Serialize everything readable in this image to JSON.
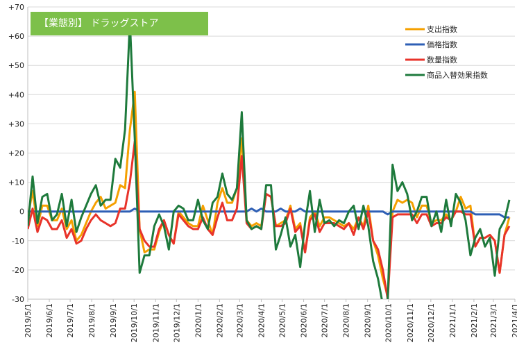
{
  "chart_data": {
    "type": "line",
    "badge_label": "【業態別】 ドラッグストア",
    "badge_color": "#7dc04a",
    "ylim": [
      -30,
      70
    ],
    "y_ticks": [
      {
        "value": 70,
        "label": "+70"
      },
      {
        "value": 60,
        "label": "+60"
      },
      {
        "value": 50,
        "label": "+50"
      },
      {
        "value": 40,
        "label": "+40"
      },
      {
        "value": 30,
        "label": "+30"
      },
      {
        "value": 20,
        "label": "+20"
      },
      {
        "value": 10,
        "label": "+10"
      },
      {
        "value": 0,
        "label": "0"
      },
      {
        "value": -10,
        "label": "-10"
      },
      {
        "value": -20,
        "label": "-20"
      },
      {
        "value": -30,
        "label": "-30"
      }
    ],
    "x_ticks": [
      "2019/5/1",
      "2019/6/1",
      "2019/7/1",
      "2019/8/1",
      "2019/9/1",
      "2019/10/1",
      "2019/11/1",
      "2019/12/1",
      "2020/1/1",
      "2020/2/1",
      "2020/3/1",
      "2020/4/1",
      "2020/5/1",
      "2020/6/1",
      "2020/7/1",
      "2020/8/1",
      "2020/9/1",
      "2020/10/1",
      "2020/11/1",
      "2020/12/1",
      "2021/1/1",
      "2021/2/1",
      "2021/3/1",
      "2021/4/1"
    ],
    "x": [
      "2019/5/1",
      "2019/5/8",
      "2019/5/15",
      "2019/5/22",
      "2019/5/29",
      "2019/6/5",
      "2019/6/12",
      "2019/6/19",
      "2019/6/26",
      "2019/7/3",
      "2019/7/10",
      "2019/7/17",
      "2019/7/24",
      "2019/7/31",
      "2019/8/7",
      "2019/8/14",
      "2019/8/21",
      "2019/8/28",
      "2019/9/4",
      "2019/9/11",
      "2019/9/18",
      "2019/9/25",
      "2019/10/2",
      "2019/10/9",
      "2019/10/16",
      "2019/10/23",
      "2019/10/30",
      "2019/11/6",
      "2019/11/13",
      "2019/11/20",
      "2019/11/27",
      "2019/12/4",
      "2019/12/11",
      "2019/12/18",
      "2019/12/25",
      "2020/1/1",
      "2020/1/8",
      "2020/1/15",
      "2020/1/22",
      "2020/1/29",
      "2020/2/5",
      "2020/2/12",
      "2020/2/19",
      "2020/2/26",
      "2020/3/4",
      "2020/3/11",
      "2020/3/18",
      "2020/3/25",
      "2020/4/1",
      "2020/4/8",
      "2020/4/15",
      "2020/4/22",
      "2020/4/29",
      "2020/5/6",
      "2020/5/13",
      "2020/5/20",
      "2020/5/27",
      "2020/6/3",
      "2020/6/10",
      "2020/6/17",
      "2020/6/24",
      "2020/7/1",
      "2020/7/8",
      "2020/7/15",
      "2020/7/22",
      "2020/7/29",
      "2020/8/5",
      "2020/8/12",
      "2020/8/19",
      "2020/8/26",
      "2020/9/2",
      "2020/9/9",
      "2020/9/16",
      "2020/9/23",
      "2020/9/30",
      "2020/10/7",
      "2020/10/14",
      "2020/10/21",
      "2020/10/28",
      "2020/11/4",
      "2020/11/11",
      "2020/11/18",
      "2020/11/25",
      "2020/12/2",
      "2020/12/9",
      "2020/12/16",
      "2020/12/23",
      "2020/12/30",
      "2021/1/6",
      "2021/1/13",
      "2021/1/20",
      "2021/1/27",
      "2021/2/3",
      "2021/2/10",
      "2021/2/17",
      "2021/2/24",
      "2021/3/3",
      "2021/3/10",
      "2021/3/17",
      "2021/3/24"
    ],
    "series": [
      {
        "name": "支出指数",
        "color": "#f5a000",
        "values": [
          -2,
          7,
          -5,
          2,
          2,
          -3,
          -3,
          1,
          -6,
          -3,
          -10,
          -8,
          -4,
          0,
          3,
          5,
          1,
          2,
          3,
          9,
          8,
          28,
          41,
          -6,
          -14,
          -13,
          -13,
          -7,
          -3,
          -8,
          -11,
          0,
          -2,
          -4,
          -5,
          -5,
          2,
          -3,
          -8,
          3,
          8,
          3,
          3,
          8,
          25,
          -3,
          -5,
          -4,
          -5,
          6,
          5,
          -5,
          -4,
          -3,
          2,
          -6,
          -4,
          -14,
          -2,
          0,
          -5,
          -2,
          -2,
          -3,
          -4,
          -5,
          -4,
          -6,
          -2,
          -5,
          2,
          -10,
          -15,
          -23,
          -29,
          0,
          4,
          3,
          4,
          3,
          -2,
          2,
          2,
          -4,
          -3,
          -3,
          -1,
          -3,
          0,
          5,
          1,
          2,
          -12,
          -9,
          -9,
          -8,
          -10,
          -21,
          -8,
          -2
        ]
      },
      {
        "name": "価格指数",
        "color": "#2e5fb5",
        "values": [
          0,
          0,
          0,
          0,
          0,
          0,
          0,
          0,
          0,
          0,
          0,
          0,
          0,
          0,
          0,
          0,
          0,
          0,
          0,
          0,
          0,
          0,
          1,
          0,
          0,
          0,
          0,
          0,
          0,
          0,
          0,
          0,
          0,
          0,
          0,
          0,
          0,
          0,
          0,
          0,
          0,
          0,
          0,
          0,
          0,
          0,
          1,
          0,
          1,
          0,
          0,
          0,
          1,
          0,
          0,
          0,
          1,
          0,
          0,
          0,
          0,
          0,
          0,
          0,
          0,
          0,
          0,
          0,
          0,
          0,
          0,
          0,
          0,
          0,
          -1,
          0,
          0,
          0,
          0,
          0,
          0,
          0,
          0,
          0,
          0,
          0,
          0,
          0,
          0,
          0,
          0,
          0,
          -1,
          -1,
          -1,
          -1,
          -1,
          -1,
          -2,
          -2
        ]
      },
      {
        "name": "数量指数",
        "color": "#e8332a",
        "values": [
          -6,
          1,
          -7,
          -2,
          -3,
          -6,
          -6,
          -3,
          -9,
          -6,
          -11,
          -10,
          -6,
          -3,
          -1,
          -3,
          -4,
          -5,
          -4,
          1,
          1,
          10,
          24,
          -6,
          -10,
          -12,
          -12,
          -6,
          -3,
          -8,
          -11,
          -1,
          -3,
          -5,
          -6,
          -6,
          -2,
          -6,
          -8,
          -2,
          3,
          -3,
          -3,
          1,
          19,
          -4,
          -6,
          -5,
          -6,
          6,
          5,
          -5,
          -5,
          -4,
          1,
          -7,
          -5,
          -14,
          -3,
          -1,
          -7,
          -4,
          -4,
          -4,
          -5,
          -6,
          -4,
          -8,
          -2,
          -6,
          0,
          -10,
          -13,
          -20,
          -30,
          -2,
          -1,
          -1,
          -1,
          -1,
          -4,
          -1,
          -1,
          -5,
          -4,
          -4,
          -2,
          -3,
          0,
          0,
          -1,
          -1,
          -12,
          -9,
          -9,
          -8,
          -10,
          -21,
          -8,
          -5
        ]
      },
      {
        "name": "商品入替効果指数",
        "color": "#1e7a3c",
        "values": [
          -5,
          12,
          -4,
          5,
          6,
          -3,
          -1,
          6,
          -5,
          4,
          -7,
          -2,
          2,
          6,
          9,
          2,
          4,
          4,
          18,
          15,
          28,
          65,
          25,
          -21,
          -15,
          -15,
          -5,
          -1,
          -5,
          -13,
          0,
          2,
          1,
          -3,
          -3,
          4,
          -3,
          -6,
          3,
          5,
          13,
          6,
          4,
          8,
          34,
          -3,
          -6,
          -5,
          -6,
          9,
          9,
          -13,
          -8,
          -2,
          -12,
          -8,
          -19,
          -4,
          7,
          -7,
          4,
          -4,
          -3,
          -5,
          -3,
          -4,
          0,
          2,
          -6,
          2,
          -5,
          -17,
          -23,
          -32,
          -30,
          16,
          7,
          10,
          6,
          -3,
          0,
          5,
          5,
          -5,
          0,
          -7,
          4,
          -5,
          6,
          3,
          -3,
          -15,
          -9,
          -6,
          -12,
          -9,
          -22,
          -6,
          -3,
          4
        ]
      }
    ],
    "grid": true,
    "legend_position": "top-right"
  }
}
